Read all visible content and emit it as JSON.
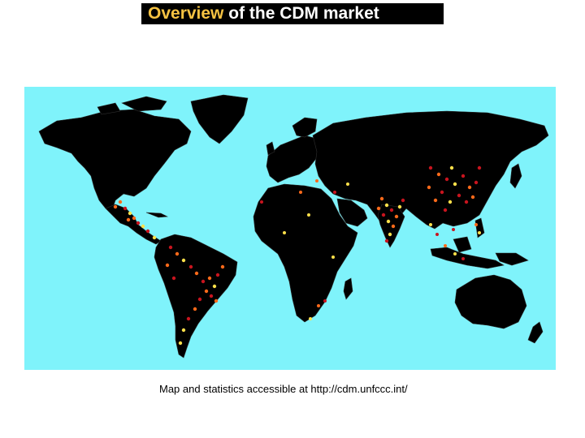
{
  "title": {
    "accent": "Overview",
    "rest": " of the CDM market"
  },
  "colors": {
    "title_bar": "#000000",
    "title_accent": "#f5c242",
    "ocean": "#7ff3fb",
    "land": "#000000",
    "border": "#3a3a3a",
    "project_dot_red": "#c8141e",
    "project_dot_orange": "#ff6a1a",
    "project_dot_yellow": "#ffe04a"
  },
  "map": {
    "type": "world map with CDM project locations"
  },
  "caption": "Map and statistics accessible at http://cdm.unfccc.int/"
}
